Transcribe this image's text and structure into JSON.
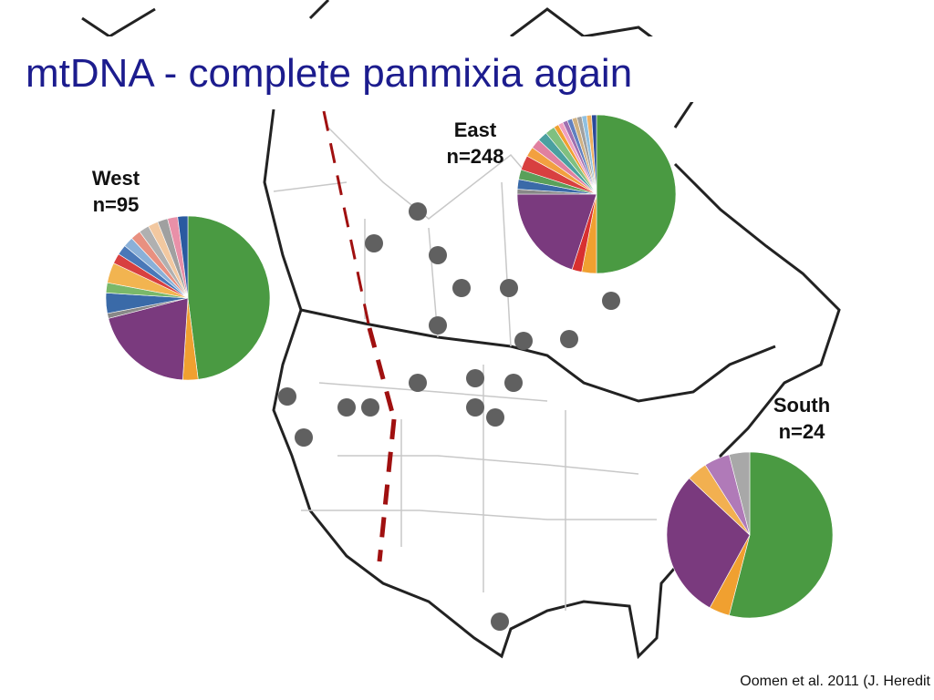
{
  "title": "mtDNA - complete panmixia again",
  "citation": "Oomen et al. 2011 (J. Heredit",
  "chart_data": [
    {
      "type": "pie",
      "title": "West",
      "subtitle": "n=95",
      "values": [
        48,
        3,
        20,
        1,
        4,
        2,
        4,
        2,
        2,
        2,
        2,
        2,
        2,
        2,
        2,
        2
      ],
      "colors": [
        "#4a9a42",
        "#f0a030",
        "#7a3a7e",
        "#888888",
        "#3a6aa8",
        "#7ab86a",
        "#f2b450",
        "#d84040",
        "#4a78b8",
        "#8ab0d8",
        "#e89080",
        "#b0b0b0",
        "#f2c8a0",
        "#a0a0a0",
        "#e890a8",
        "#2a5aa0"
      ]
    },
    {
      "type": "pie",
      "title": "East",
      "subtitle": "n=248",
      "values": [
        50,
        3,
        2,
        20,
        1,
        2,
        2,
        3,
        2,
        2,
        2,
        2,
        1,
        1,
        1,
        1,
        1,
        1,
        1,
        1,
        1
      ],
      "colors": [
        "#4a9a42",
        "#f0a030",
        "#d83030",
        "#7a3a7e",
        "#888888",
        "#3a6aa8",
        "#5aa05a",
        "#d84040",
        "#f2a040",
        "#e080a0",
        "#4aa0a0",
        "#80c080",
        "#f0a030",
        "#f0a0c0",
        "#a070b0",
        "#6080c0",
        "#d0b080",
        "#a0a0a0",
        "#90c0e0",
        "#f0b060",
        "#2a4a98"
      ]
    },
    {
      "type": "pie",
      "title": "South",
      "subtitle": "n=24",
      "values": [
        54,
        4,
        29,
        4,
        5,
        4
      ],
      "colors": [
        "#4a9a42",
        "#f0a030",
        "#7a3a7e",
        "#f2b050",
        "#b07ab8",
        "#a8a8a8"
      ]
    }
  ]
}
